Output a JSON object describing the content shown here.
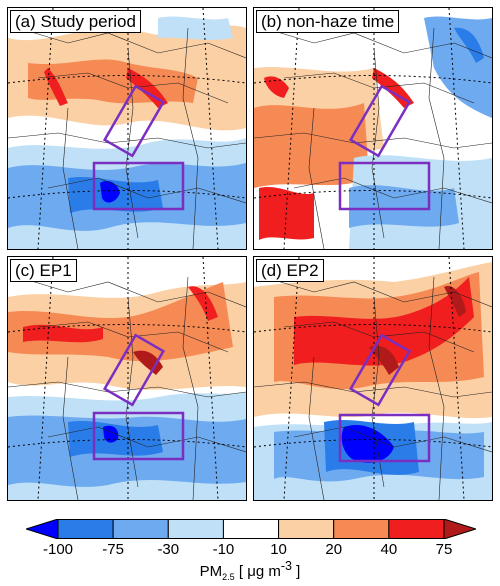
{
  "panels": [
    {
      "label": "(a) Study period"
    },
    {
      "label": "(b) non-haze time"
    },
    {
      "label": "(c) EP1"
    },
    {
      "label": "(d) EP2"
    }
  ],
  "colorbar": {
    "ticks": [
      "-100",
      "-75",
      "-30",
      "-10",
      "10",
      "20",
      "40",
      "75"
    ],
    "colors": [
      "#0000ff",
      "#2a7de8",
      "#6eaaf0",
      "#bfe0f7",
      "#ffffff",
      "#fbd0a4",
      "#f58a55",
      "#f01e1e",
      "#b01a1a"
    ],
    "unit_prefix": "PM",
    "unit_sub": "2.5",
    "unit_suffix": " [ μg m",
    "unit_sup": "-3",
    "unit_end": " ]"
  }
}
